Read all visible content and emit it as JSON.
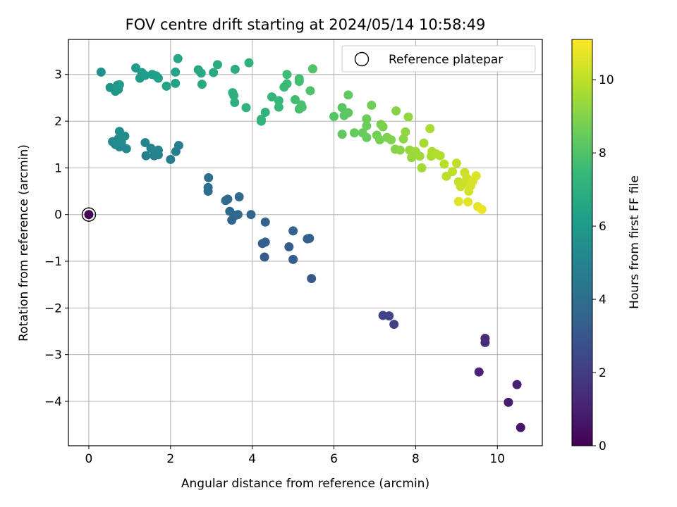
{
  "chart_data": {
    "type": "scatter",
    "title": "FOV centre drift starting at 2024/05/14 10:58:49",
    "xlabel": "Angular distance from reference (arcmin)",
    "ylabel": "Rotation from reference (arcmin)",
    "xlim": [
      -0.5,
      11.1
    ],
    "ylim": [
      -4.95,
      3.75
    ],
    "x_ticks": [
      0,
      2,
      4,
      6,
      8,
      10
    ],
    "y_ticks": [
      -4,
      -3,
      -2,
      -1,
      0,
      1,
      2,
      3
    ],
    "grid": true,
    "legend": {
      "position": "top-right",
      "entries": [
        "Reference platepar"
      ]
    },
    "reference_point": {
      "x": 0,
      "y": 0,
      "hours": 0
    },
    "colorbar": {
      "label": "Hours from first FF file",
      "range": [
        0,
        11.1
      ],
      "ticks": [
        0,
        2,
        4,
        6,
        8,
        10
      ],
      "colormap": "viridis"
    },
    "series": [
      {
        "points": [
          {
            "x": 0.0,
            "y": 0.0,
            "h": 0.1
          },
          {
            "x": 10.57,
            "y": -4.56,
            "h": 0.7
          },
          {
            "x": 10.27,
            "y": -4.02,
            "h": 0.85
          },
          {
            "x": 10.48,
            "y": -3.64,
            "h": 1.0
          },
          {
            "x": 9.55,
            "y": -3.37,
            "h": 1.15
          },
          {
            "x": 9.7,
            "y": -2.74,
            "h": 1.3
          },
          {
            "x": 9.7,
            "y": -2.65,
            "h": 1.4
          },
          {
            "x": 7.47,
            "y": -2.35,
            "h": 2.2
          },
          {
            "x": 7.2,
            "y": -2.16,
            "h": 2.25
          },
          {
            "x": 7.35,
            "y": -2.17,
            "h": 2.3
          },
          {
            "x": 5.45,
            "y": -1.37,
            "h": 3.1
          },
          {
            "x": 4.3,
            "y": -0.91,
            "h": 3.2
          },
          {
            "x": 5.0,
            "y": -0.96,
            "h": 3.2
          },
          {
            "x": 4.9,
            "y": -0.69,
            "h": 3.3
          },
          {
            "x": 4.25,
            "y": -0.62,
            "h": 3.3
          },
          {
            "x": 4.32,
            "y": -0.59,
            "h": 3.35
          },
          {
            "x": 5.35,
            "y": -0.52,
            "h": 3.4
          },
          {
            "x": 5.4,
            "y": -0.51,
            "h": 3.4
          },
          {
            "x": 5.0,
            "y": -0.35,
            "h": 3.45
          },
          {
            "x": 4.32,
            "y": -0.16,
            "h": 3.5
          },
          {
            "x": 3.5,
            "y": -0.12,
            "h": 3.6
          },
          {
            "x": 3.58,
            "y": -0.02,
            "h": 3.6
          },
          {
            "x": 3.45,
            "y": 0.07,
            "h": 3.7
          },
          {
            "x": 3.65,
            "y": 0.0,
            "h": 3.7
          },
          {
            "x": 3.97,
            "y": 0.0,
            "h": 3.7
          },
          {
            "x": 3.68,
            "y": 0.38,
            "h": 3.8
          },
          {
            "x": 3.4,
            "y": 0.33,
            "h": 3.85
          },
          {
            "x": 3.35,
            "y": 0.3,
            "h": 3.9
          },
          {
            "x": 2.92,
            "y": 0.5,
            "h": 3.95
          },
          {
            "x": 2.92,
            "y": 0.58,
            "h": 4.0
          },
          {
            "x": 2.93,
            "y": 0.79,
            "h": 4.05
          },
          {
            "x": 2.0,
            "y": 1.18,
            "h": 4.6
          },
          {
            "x": 2.13,
            "y": 1.35,
            "h": 4.65
          },
          {
            "x": 2.2,
            "y": 1.48,
            "h": 4.7
          },
          {
            "x": 1.4,
            "y": 1.26,
            "h": 4.8
          },
          {
            "x": 1.6,
            "y": 1.26,
            "h": 4.85
          },
          {
            "x": 1.7,
            "y": 1.28,
            "h": 4.9
          },
          {
            "x": 1.7,
            "y": 1.38,
            "h": 4.95
          },
          {
            "x": 1.52,
            "y": 1.42,
            "h": 5.0
          },
          {
            "x": 1.38,
            "y": 1.54,
            "h": 5.05
          },
          {
            "x": 0.92,
            "y": 1.41,
            "h": 5.1
          },
          {
            "x": 0.75,
            "y": 1.45,
            "h": 5.15
          },
          {
            "x": 0.58,
            "y": 1.56,
            "h": 5.2
          },
          {
            "x": 0.65,
            "y": 1.5,
            "h": 5.25
          },
          {
            "x": 0.8,
            "y": 1.55,
            "h": 5.3
          },
          {
            "x": 0.72,
            "y": 1.62,
            "h": 5.35
          },
          {
            "x": 0.88,
            "y": 1.68,
            "h": 5.4
          },
          {
            "x": 0.75,
            "y": 1.78,
            "h": 5.45
          },
          {
            "x": 0.3,
            "y": 3.05,
            "h": 5.7
          },
          {
            "x": 0.52,
            "y": 2.72,
            "h": 5.75
          },
          {
            "x": 0.65,
            "y": 2.64,
            "h": 5.8
          },
          {
            "x": 0.72,
            "y": 2.68,
            "h": 5.85
          },
          {
            "x": 0.75,
            "y": 2.78,
            "h": 5.9
          },
          {
            "x": 0.7,
            "y": 2.77,
            "h": 5.95
          },
          {
            "x": 1.15,
            "y": 3.14,
            "h": 6.0
          },
          {
            "x": 1.25,
            "y": 2.92,
            "h": 6.05
          },
          {
            "x": 1.3,
            "y": 3.04,
            "h": 6.1
          },
          {
            "x": 1.38,
            "y": 2.98,
            "h": 6.15
          },
          {
            "x": 1.55,
            "y": 3.0,
            "h": 6.2
          },
          {
            "x": 1.7,
            "y": 2.92,
            "h": 6.25
          },
          {
            "x": 1.65,
            "y": 2.97,
            "h": 6.3
          },
          {
            "x": 1.9,
            "y": 2.75,
            "h": 6.35
          },
          {
            "x": 2.12,
            "y": 2.81,
            "h": 6.4
          },
          {
            "x": 2.12,
            "y": 3.05,
            "h": 6.45
          },
          {
            "x": 2.18,
            "y": 3.34,
            "h": 6.5
          },
          {
            "x": 2.68,
            "y": 3.1,
            "h": 6.6
          },
          {
            "x": 2.75,
            "y": 3.03,
            "h": 6.65
          },
          {
            "x": 2.77,
            "y": 2.79,
            "h": 6.7
          },
          {
            "x": 3.05,
            "y": 3.04,
            "h": 6.75
          },
          {
            "x": 3.15,
            "y": 3.21,
            "h": 6.8
          },
          {
            "x": 3.58,
            "y": 3.11,
            "h": 6.9
          },
          {
            "x": 3.52,
            "y": 2.61,
            "h": 6.95
          },
          {
            "x": 3.55,
            "y": 2.55,
            "h": 7.0
          },
          {
            "x": 3.57,
            "y": 2.4,
            "h": 7.05
          },
          {
            "x": 3.85,
            "y": 2.29,
            "h": 7.1
          },
          {
            "x": 3.92,
            "y": 3.25,
            "h": 7.15
          },
          {
            "x": 4.32,
            "y": 2.19,
            "h": 7.2
          },
          {
            "x": 4.22,
            "y": 2.0,
            "h": 7.25
          },
          {
            "x": 4.22,
            "y": 2.04,
            "h": 7.3
          },
          {
            "x": 4.48,
            "y": 2.52,
            "h": 7.35
          },
          {
            "x": 4.65,
            "y": 2.44,
            "h": 7.4
          },
          {
            "x": 4.65,
            "y": 2.3,
            "h": 7.45
          },
          {
            "x": 4.78,
            "y": 2.73,
            "h": 7.5
          },
          {
            "x": 4.85,
            "y": 2.8,
            "h": 7.55
          },
          {
            "x": 4.85,
            "y": 3.0,
            "h": 7.6
          },
          {
            "x": 5.05,
            "y": 2.46,
            "h": 7.65
          },
          {
            "x": 5.15,
            "y": 2.91,
            "h": 7.7
          },
          {
            "x": 5.15,
            "y": 2.85,
            "h": 7.75
          },
          {
            "x": 5.15,
            "y": 2.26,
            "h": 7.8
          },
          {
            "x": 5.2,
            "y": 2.35,
            "h": 7.85
          },
          {
            "x": 5.22,
            "y": 2.3,
            "h": 7.9
          },
          {
            "x": 5.42,
            "y": 2.65,
            "h": 7.95
          },
          {
            "x": 5.48,
            "y": 3.12,
            "h": 8.0
          },
          {
            "x": 6.0,
            "y": 2.1,
            "h": 8.1
          },
          {
            "x": 6.2,
            "y": 2.29,
            "h": 8.15
          },
          {
            "x": 6.25,
            "y": 2.12,
            "h": 8.2
          },
          {
            "x": 6.35,
            "y": 2.18,
            "h": 8.25
          },
          {
            "x": 6.2,
            "y": 1.72,
            "h": 8.3
          },
          {
            "x": 6.35,
            "y": 2.56,
            "h": 8.35
          },
          {
            "x": 6.5,
            "y": 1.75,
            "h": 8.4
          },
          {
            "x": 6.7,
            "y": 1.75,
            "h": 8.45
          },
          {
            "x": 6.8,
            "y": 1.65,
            "h": 8.5
          },
          {
            "x": 6.8,
            "y": 1.9,
            "h": 8.55
          },
          {
            "x": 6.8,
            "y": 2.05,
            "h": 8.6
          },
          {
            "x": 6.92,
            "y": 2.34,
            "h": 8.65
          },
          {
            "x": 7.05,
            "y": 1.7,
            "h": 8.7
          },
          {
            "x": 7.12,
            "y": 1.6,
            "h": 8.75
          },
          {
            "x": 7.15,
            "y": 1.93,
            "h": 8.8
          },
          {
            "x": 7.2,
            "y": 1.88,
            "h": 8.85
          },
          {
            "x": 7.3,
            "y": 1.65,
            "h": 8.9
          },
          {
            "x": 7.4,
            "y": 1.6,
            "h": 8.95
          },
          {
            "x": 7.5,
            "y": 1.4,
            "h": 9.0
          },
          {
            "x": 7.52,
            "y": 2.22,
            "h": 9.05
          },
          {
            "x": 7.62,
            "y": 1.38,
            "h": 9.1
          },
          {
            "x": 7.7,
            "y": 1.62,
            "h": 9.15
          },
          {
            "x": 7.75,
            "y": 1.77,
            "h": 9.2
          },
          {
            "x": 7.82,
            "y": 2.09,
            "h": 9.25
          },
          {
            "x": 7.85,
            "y": 1.38,
            "h": 9.3
          },
          {
            "x": 7.9,
            "y": 1.22,
            "h": 9.35
          },
          {
            "x": 7.95,
            "y": 1.3,
            "h": 9.4
          },
          {
            "x": 8.0,
            "y": 1.35,
            "h": 9.45
          },
          {
            "x": 8.1,
            "y": 1.25,
            "h": 9.5
          },
          {
            "x": 8.15,
            "y": 1.0,
            "h": 9.55
          },
          {
            "x": 8.2,
            "y": 1.53,
            "h": 9.6
          },
          {
            "x": 8.35,
            "y": 1.84,
            "h": 9.65
          },
          {
            "x": 8.38,
            "y": 1.25,
            "h": 9.7
          },
          {
            "x": 8.4,
            "y": 1.35,
            "h": 9.75
          },
          {
            "x": 8.5,
            "y": 1.3,
            "h": 9.8
          },
          {
            "x": 8.6,
            "y": 1.26,
            "h": 9.85
          },
          {
            "x": 8.7,
            "y": 1.08,
            "h": 9.9
          },
          {
            "x": 8.75,
            "y": 0.82,
            "h": 9.95
          },
          {
            "x": 8.9,
            "y": 0.92,
            "h": 10.0
          },
          {
            "x": 9.0,
            "y": 1.1,
            "h": 10.05
          },
          {
            "x": 9.05,
            "y": 0.7,
            "h": 10.1
          },
          {
            "x": 9.1,
            "y": 0.6,
            "h": 10.15
          },
          {
            "x": 9.15,
            "y": 0.65,
            "h": 10.2
          },
          {
            "x": 9.2,
            "y": 0.9,
            "h": 10.25
          },
          {
            "x": 9.25,
            "y": 0.78,
            "h": 10.3
          },
          {
            "x": 9.3,
            "y": 0.5,
            "h": 10.35
          },
          {
            "x": 9.35,
            "y": 0.62,
            "h": 10.4
          },
          {
            "x": 9.4,
            "y": 0.72,
            "h": 10.45
          },
          {
            "x": 9.48,
            "y": 0.83,
            "h": 10.5
          },
          {
            "x": 9.05,
            "y": 0.28,
            "h": 10.55
          },
          {
            "x": 9.28,
            "y": 0.27,
            "h": 10.6
          },
          {
            "x": 9.52,
            "y": 0.17,
            "h": 10.7
          },
          {
            "x": 9.62,
            "y": 0.11,
            "h": 10.8
          }
        ]
      }
    ]
  }
}
